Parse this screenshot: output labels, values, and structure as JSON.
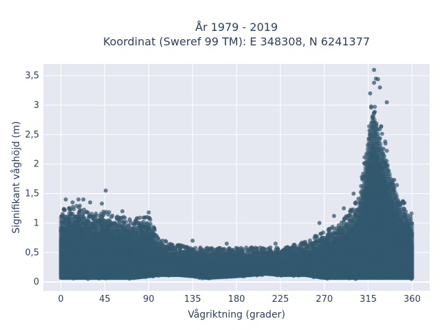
{
  "chart_data": {
    "type": "scatter",
    "title_lines": [
      "År 1979 - 2019",
      "Koordinat (Sweref 99 TM): E 348308, N 6241377"
    ],
    "xlabel": "Vågriktning (grader)",
    "ylabel": "Signifikant våghöjd (m)",
    "xlim": [
      -18,
      378
    ],
    "ylim": [
      -0.15,
      3.7
    ],
    "x_ticks": [
      0,
      45,
      90,
      135,
      180,
      225,
      270,
      315,
      360
    ],
    "x_tick_labels": [
      "0",
      "45",
      "90",
      "135",
      "180",
      "225",
      "270",
      "315",
      "360"
    ],
    "y_ticks": [
      0,
      0.5,
      1,
      1.5,
      2,
      2.5,
      3,
      3.5
    ],
    "y_tick_labels": [
      "0",
      "0,5",
      "1",
      "1,5",
      "2",
      "2,5",
      "3",
      "3,5"
    ],
    "grid": true,
    "marker_color": "#34586e",
    "plot_background": "#e5e8f0",
    "envelope": {
      "direction": [
        0,
        10,
        20,
        30,
        45,
        60,
        75,
        90,
        100,
        120,
        135,
        150,
        180,
        210,
        225,
        250,
        270,
        285,
        295,
        305,
        310,
        315,
        320,
        325,
        330,
        335,
        340,
        345,
        350,
        355,
        360
      ],
      "max_height": [
        1.35,
        1.3,
        1.35,
        1.2,
        1.25,
        1.15,
        1.1,
        1.2,
        0.75,
        0.65,
        0.6,
        0.6,
        0.6,
        0.6,
        0.6,
        0.7,
        0.9,
        1.05,
        1.2,
        1.5,
        2.0,
        2.8,
        3.4,
        3.0,
        2.6,
        2.3,
        2.0,
        1.7,
        1.45,
        1.3,
        1.2
      ],
      "min_height": [
        0.05,
        0.05,
        0.05,
        0.05,
        0.05,
        0.05,
        0.05,
        0.08,
        0.1,
        0.1,
        0.08,
        0.05,
        0.08,
        0.12,
        0.1,
        0.1,
        0.05,
        0.05,
        0.05,
        0.05,
        0.05,
        0.05,
        0.05,
        0.05,
        0.05,
        0.05,
        0.05,
        0.05,
        0.05,
        0.05,
        0.05
      ]
    },
    "notable_points": [
      {
        "x": 321,
        "y": 3.6
      },
      {
        "x": 323,
        "y": 3.45
      },
      {
        "x": 325,
        "y": 3.44
      },
      {
        "x": 321,
        "y": 3.38
      },
      {
        "x": 327,
        "y": 3.3
      },
      {
        "x": 317,
        "y": 3.2
      },
      {
        "x": 334,
        "y": 3.05
      },
      {
        "x": 46,
        "y": 1.55
      },
      {
        "x": 18,
        "y": 1.4
      },
      {
        "x": 23,
        "y": 1.4
      },
      {
        "x": 5,
        "y": 1.4
      },
      {
        "x": 30,
        "y": 1.35
      },
      {
        "x": 42,
        "y": 1.33
      },
      {
        "x": 12,
        "y": 1.35
      },
      {
        "x": 63,
        "y": 1.2
      },
      {
        "x": 90,
        "y": 1.18
      },
      {
        "x": 135,
        "y": 0.7
      },
      {
        "x": 170,
        "y": 0.65
      },
      {
        "x": 220,
        "y": 0.65
      },
      {
        "x": 265,
        "y": 1.0
      },
      {
        "x": 280,
        "y": 1.12
      },
      {
        "x": 290,
        "y": 1.25
      },
      {
        "x": 300,
        "y": 1.5
      }
    ]
  }
}
